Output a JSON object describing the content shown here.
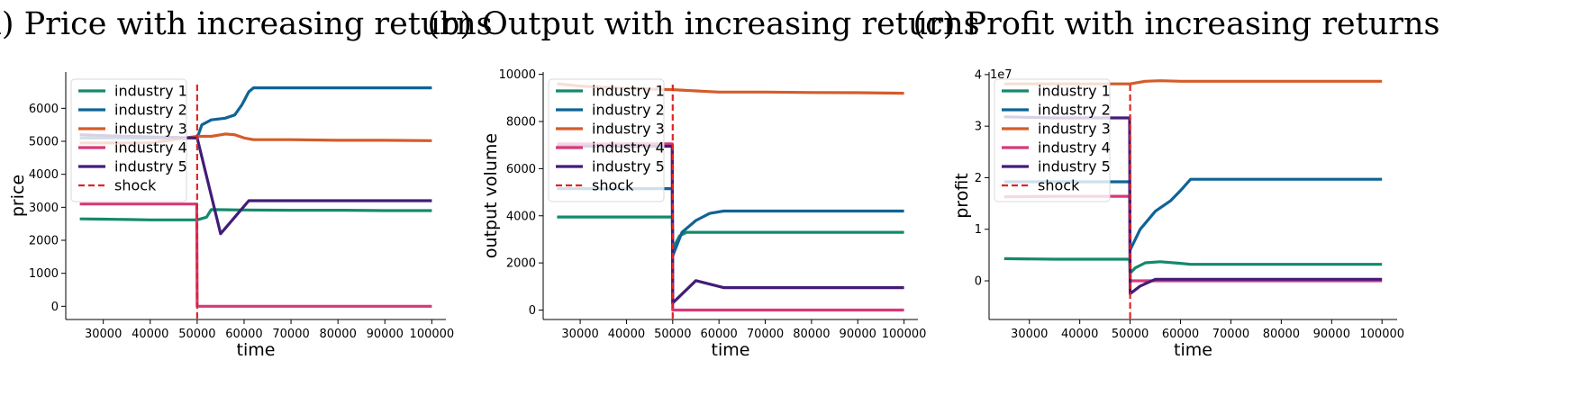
{
  "colors": {
    "industry 1": "#138a6b",
    "industry 2": "#0f6396",
    "industry 3": "#d45c29",
    "industry 4": "#d6387a",
    "industry 5": "#421c78",
    "shock": "#e02424"
  },
  "chart_data": [
    {
      "type": "line",
      "title": "(a) Price with increasing returns",
      "xlabel": "time",
      "ylabel": "price",
      "xlim": [
        22000,
        103000
      ],
      "ylim": [
        -400,
        7100
      ],
      "xticks": [
        30000,
        40000,
        50000,
        60000,
        70000,
        80000,
        90000,
        100000
      ],
      "yticks": [
        0,
        1000,
        2000,
        3000,
        4000,
        5000,
        6000
      ],
      "multiplier": "",
      "shock_x": 50000,
      "grid": false,
      "legend": "top-left",
      "legend_entries": [
        "industry 1",
        "industry 2",
        "industry 3",
        "industry 4",
        "industry 5",
        "shock"
      ],
      "series": [
        {
          "name": "industry 1",
          "x": [
            25000,
            30000,
            35000,
            40000,
            45000,
            50000,
            52000,
            53000,
            60000,
            70000,
            80000,
            90000,
            100000
          ],
          "y": [
            2650,
            2640,
            2630,
            2620,
            2620,
            2620,
            2700,
            2930,
            2920,
            2910,
            2910,
            2900,
            2900
          ]
        },
        {
          "name": "industry 2",
          "x": [
            25000,
            40000,
            50000,
            51000,
            53000,
            56000,
            58000,
            59500,
            61000,
            62000,
            70000,
            80000,
            90000,
            100000
          ],
          "y": [
            5100,
            5100,
            5100,
            5500,
            5650,
            5700,
            5800,
            6100,
            6500,
            6620,
            6620,
            6620,
            6620,
            6620
          ]
        },
        {
          "name": "industry 3",
          "x": [
            25000,
            30000,
            40000,
            50000,
            53000,
            56000,
            58000,
            60000,
            62000,
            70000,
            80000,
            90000,
            100000
          ],
          "y": [
            4950,
            4950,
            4950,
            5150,
            5150,
            5220,
            5200,
            5100,
            5050,
            5050,
            5030,
            5030,
            5020
          ]
        },
        {
          "name": "industry 4",
          "x": [
            25000,
            30000,
            40000,
            49900,
            50000,
            60000,
            70000,
            80000,
            90000,
            100000
          ],
          "y": [
            3100,
            3100,
            3100,
            3100,
            0,
            0,
            0,
            0,
            0,
            0
          ]
        },
        {
          "name": "industry 5",
          "x": [
            25000,
            35000,
            45000,
            50000,
            55000,
            58000,
            61000,
            70000,
            80000,
            90000,
            100000
          ],
          "y": [
            5200,
            5150,
            5120,
            5100,
            2200,
            2700,
            3200,
            3200,
            3200,
            3200,
            3200
          ]
        }
      ]
    },
    {
      "type": "line",
      "title": "(b) Output with increasing returns",
      "xlabel": "time",
      "ylabel": "output volume",
      "xlim": [
        22000,
        103000
      ],
      "ylim": [
        -400,
        10100
      ],
      "xticks": [
        30000,
        40000,
        50000,
        60000,
        70000,
        80000,
        90000,
        100000
      ],
      "yticks": [
        0,
        2000,
        4000,
        6000,
        8000,
        10000
      ],
      "multiplier": "",
      "shock_x": 50000,
      "grid": false,
      "legend": "top-left",
      "legend_entries": [
        "industry 1",
        "industry 2",
        "industry 3",
        "industry 4",
        "industry 5",
        "shock"
      ],
      "series": [
        {
          "name": "industry 1",
          "x": [
            25000,
            35000,
            45000,
            49900,
            50000,
            51500,
            53000,
            56000,
            60000,
            70000,
            80000,
            90000,
            100000
          ],
          "y": [
            3950,
            3950,
            3950,
            3950,
            2600,
            3150,
            3300,
            3300,
            3300,
            3300,
            3300,
            3300,
            3300
          ]
        },
        {
          "name": "industry 2",
          "x": [
            25000,
            35000,
            45000,
            49900,
            50000,
            52000,
            55000,
            58000,
            61000,
            70000,
            80000,
            90000,
            100000
          ],
          "y": [
            5150,
            5150,
            5150,
            5150,
            2300,
            3300,
            3800,
            4100,
            4200,
            4200,
            4200,
            4200,
            4200
          ]
        },
        {
          "name": "industry 3",
          "x": [
            25000,
            30000,
            40000,
            50000,
            55000,
            60000,
            70000,
            80000,
            90000,
            100000
          ],
          "y": [
            9600,
            9500,
            9400,
            9350,
            9300,
            9250,
            9250,
            9230,
            9220,
            9200
          ]
        },
        {
          "name": "industry 4",
          "x": [
            25000,
            30000,
            40000,
            49900,
            50000,
            60000,
            70000,
            80000,
            90000,
            100000
          ],
          "y": [
            7050,
            7050,
            7050,
            7050,
            0,
            0,
            0,
            0,
            0,
            0
          ]
        },
        {
          "name": "industry 5",
          "x": [
            25000,
            35000,
            45000,
            49900,
            50000,
            55000,
            58000,
            61000,
            70000,
            80000,
            90000,
            100000
          ],
          "y": [
            6950,
            6950,
            6950,
            6950,
            300,
            1250,
            1100,
            950,
            950,
            950,
            950,
            950
          ]
        }
      ]
    },
    {
      "type": "line",
      "title": "(c) Profit with increasing returns",
      "xlabel": "time",
      "ylabel": "profit",
      "xlim": [
        22000,
        103000
      ],
      "ylim": [
        -0.75,
        4.05
      ],
      "xticks": [
        30000,
        40000,
        50000,
        60000,
        70000,
        80000,
        90000,
        100000
      ],
      "yticks": [
        0,
        1,
        2,
        3,
        4
      ],
      "multiplier": "1e7",
      "shock_x": 50000,
      "grid": false,
      "legend": "top-left",
      "legend_entries": [
        "industry 1",
        "industry 2",
        "industry 3",
        "industry 4",
        "industry 5",
        "shock"
      ],
      "series": [
        {
          "name": "industry 1",
          "x": [
            25000,
            35000,
            45000,
            49900,
            50000,
            51000,
            53000,
            56000,
            60000,
            62000,
            70000,
            80000,
            90000,
            100000
          ],
          "y": [
            0.43,
            0.42,
            0.42,
            0.42,
            0.15,
            0.25,
            0.35,
            0.37,
            0.34,
            0.32,
            0.32,
            0.32,
            0.32,
            0.32
          ]
        },
        {
          "name": "industry 2",
          "x": [
            25000,
            35000,
            45000,
            49900,
            50000,
            52000,
            55000,
            58000,
            60000,
            62000,
            70000,
            80000,
            90000,
            100000
          ],
          "y": [
            1.92,
            1.92,
            1.92,
            1.92,
            0.6,
            1.0,
            1.35,
            1.55,
            1.75,
            1.97,
            1.97,
            1.97,
            1.97,
            1.97
          ]
        },
        {
          "name": "industry 3",
          "x": [
            25000,
            35000,
            45000,
            50000,
            53000,
            56000,
            60000,
            70000,
            80000,
            90000,
            100000
          ],
          "y": [
            3.82,
            3.82,
            3.82,
            3.82,
            3.87,
            3.88,
            3.87,
            3.87,
            3.87,
            3.87,
            3.87
          ]
        },
        {
          "name": "industry 4",
          "x": [
            25000,
            35000,
            45000,
            49900,
            50000,
            60000,
            70000,
            80000,
            90000,
            100000
          ],
          "y": [
            1.63,
            1.64,
            1.64,
            1.64,
            0,
            0,
            0,
            0,
            0,
            0
          ]
        },
        {
          "name": "industry 5",
          "x": [
            25000,
            35000,
            45000,
            49900,
            50000,
            52000,
            55000,
            60000,
            70000,
            80000,
            90000,
            100000
          ],
          "y": [
            3.18,
            3.16,
            3.16,
            3.16,
            -0.25,
            -0.1,
            0.03,
            0.03,
            0.03,
            0.03,
            0.03,
            0.03
          ]
        }
      ]
    }
  ]
}
